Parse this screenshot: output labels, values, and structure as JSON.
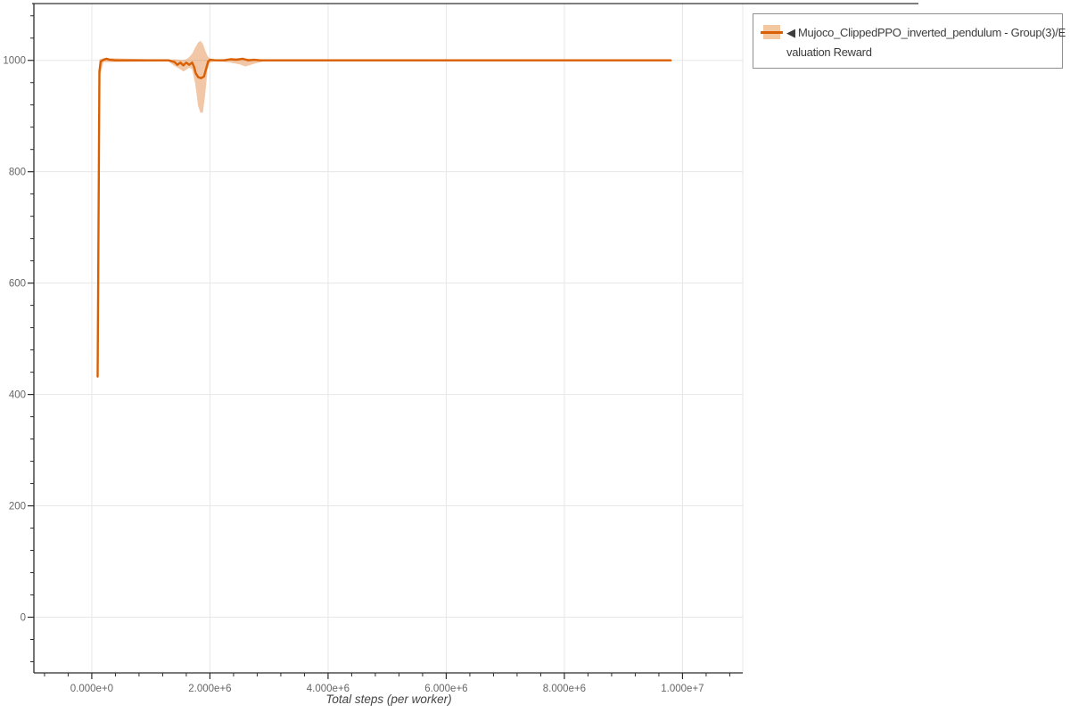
{
  "colors": {
    "background": "#ffffff",
    "axis_line": "#2b2b2b",
    "grid_line": "#e7e7e7",
    "right_spine": "#e7e7e7",
    "top_rule": "#303030",
    "tick_label": "#666666",
    "axis_title": "#444444",
    "legend_border": "#8f8f8f",
    "legend_text": "#3c3c3c",
    "series_line": "#d95f02",
    "series_band": "rgba(217,95,2,0.35)",
    "legend_band_swatch": "#f3c7a0"
  },
  "legend": {
    "lines": [
      "◀ Mujoco_ClippedPPO_inverted_pendulum - Group(3)/E",
      "valuation Reward"
    ],
    "swatch_icon": "line-with-band-swatch"
  },
  "chart_data": {
    "type": "line",
    "title": "",
    "xlabel": "Total steps (per worker)",
    "ylabel": "",
    "grid": true,
    "legend_position": "outside-top-right",
    "x_axis": {
      "min": -980000,
      "max": 11020000,
      "major_ticks": [
        0,
        2000000,
        4000000,
        6000000,
        8000000,
        10000000
      ],
      "major_tick_labels": [
        "0.000e+0",
        "2.000e+6",
        "4.000e+6",
        "6.000e+6",
        "8.000e+6",
        "1.000e+7"
      ],
      "minor_tick_step": 400000,
      "major_every": 2000000
    },
    "y_axis": {
      "min": -100,
      "max": 1102,
      "major_ticks": [
        0,
        200,
        400,
        600,
        800,
        1000
      ],
      "major_tick_labels": [
        "0",
        "200",
        "400",
        "600",
        "800",
        "1000"
      ],
      "minor_tick_step": 40,
      "major_every": 200
    },
    "series": [
      {
        "name": "Mujoco_ClippedPPO_inverted_pendulum - Group(3)/Evaluation Reward",
        "color": "#d95f02",
        "band_fill": "rgba(217,95,2,0.35)",
        "points": [
          [
            100000,
            432
          ],
          [
            130000,
            980
          ],
          [
            150000,
            998
          ],
          [
            200000,
            1001
          ],
          [
            250000,
            1003
          ],
          [
            300000,
            1001
          ],
          [
            400000,
            1000
          ],
          [
            1300000,
            1000
          ],
          [
            1400000,
            997
          ],
          [
            1450000,
            992
          ],
          [
            1500000,
            996
          ],
          [
            1550000,
            991
          ],
          [
            1600000,
            996
          ],
          [
            1650000,
            992
          ],
          [
            1700000,
            996
          ],
          [
            1730000,
            989
          ],
          [
            1760000,
            977
          ],
          [
            1800000,
            970
          ],
          [
            1850000,
            968
          ],
          [
            1900000,
            971
          ],
          [
            1940000,
            987
          ],
          [
            1970000,
            998
          ],
          [
            2000000,
            1001
          ],
          [
            2100000,
            1000
          ],
          [
            2250000,
            1000
          ],
          [
            2350000,
            1002
          ],
          [
            2450000,
            1001
          ],
          [
            2550000,
            1003
          ],
          [
            2650000,
            1000
          ],
          [
            2750000,
            1001
          ],
          [
            2850000,
            1000
          ],
          [
            9800000,
            1000
          ]
        ],
        "band": [
          [
            100000,
            415,
            455
          ],
          [
            130000,
            970,
            1002
          ],
          [
            200000,
            997,
            1004
          ],
          [
            300000,
            997,
            1004
          ],
          [
            1300000,
            998,
            1001
          ],
          [
            1400000,
            990,
            1002
          ],
          [
            1500000,
            984,
            1001
          ],
          [
            1550000,
            980,
            1001
          ],
          [
            1600000,
            983,
            1002
          ],
          [
            1650000,
            987,
            1006
          ],
          [
            1700000,
            984,
            1012
          ],
          [
            1750000,
            958,
            1023
          ],
          [
            1800000,
            918,
            1032
          ],
          [
            1840000,
            906,
            1035
          ],
          [
            1880000,
            906,
            1030
          ],
          [
            1920000,
            938,
            1018
          ],
          [
            1960000,
            984,
            1008
          ],
          [
            2000000,
            996,
            1003
          ],
          [
            2100000,
            999,
            1001
          ],
          [
            2200000,
            998,
            1002
          ],
          [
            2350000,
            996,
            1004
          ],
          [
            2500000,
            993,
            1004
          ],
          [
            2600000,
            989,
            1003
          ],
          [
            2750000,
            994,
            1003
          ],
          [
            2900000,
            998,
            1001
          ],
          [
            9800000,
            999,
            1001
          ]
        ]
      }
    ]
  }
}
